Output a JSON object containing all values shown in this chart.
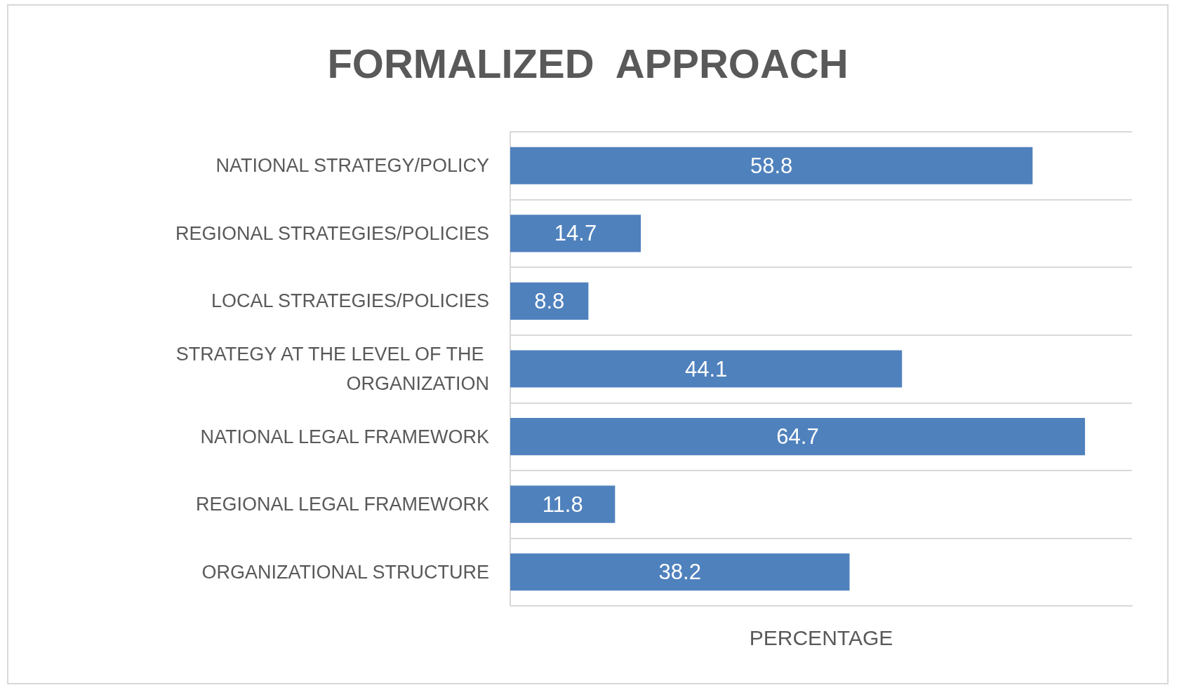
{
  "chart_data": {
    "type": "bar",
    "orientation": "horizontal",
    "title": "FORMALIZED  APPROACH",
    "xlabel": "PERCENTAGE",
    "categories": [
      "NATIONAL STRATEGY/POLICY",
      "REGIONAL STRATEGIES/POLICIES",
      "LOCAL STRATEGIES/POLICIES",
      "STRATEGY AT THE LEVEL OF THE ORGANIZATION",
      "NATIONAL LEGAL FRAMEWORK",
      "REGIONAL LEGAL FRAMEWORK",
      "ORGANIZATIONAL STRUCTURE"
    ],
    "values": [
      58.8,
      14.7,
      8.8,
      44.1,
      64.7,
      11.8,
      38.2
    ],
    "color": "#4f81bd",
    "xlim": [
      0,
      70
    ],
    "data_labels": true,
    "grid": "y",
    "tick_labels": "y"
  }
}
